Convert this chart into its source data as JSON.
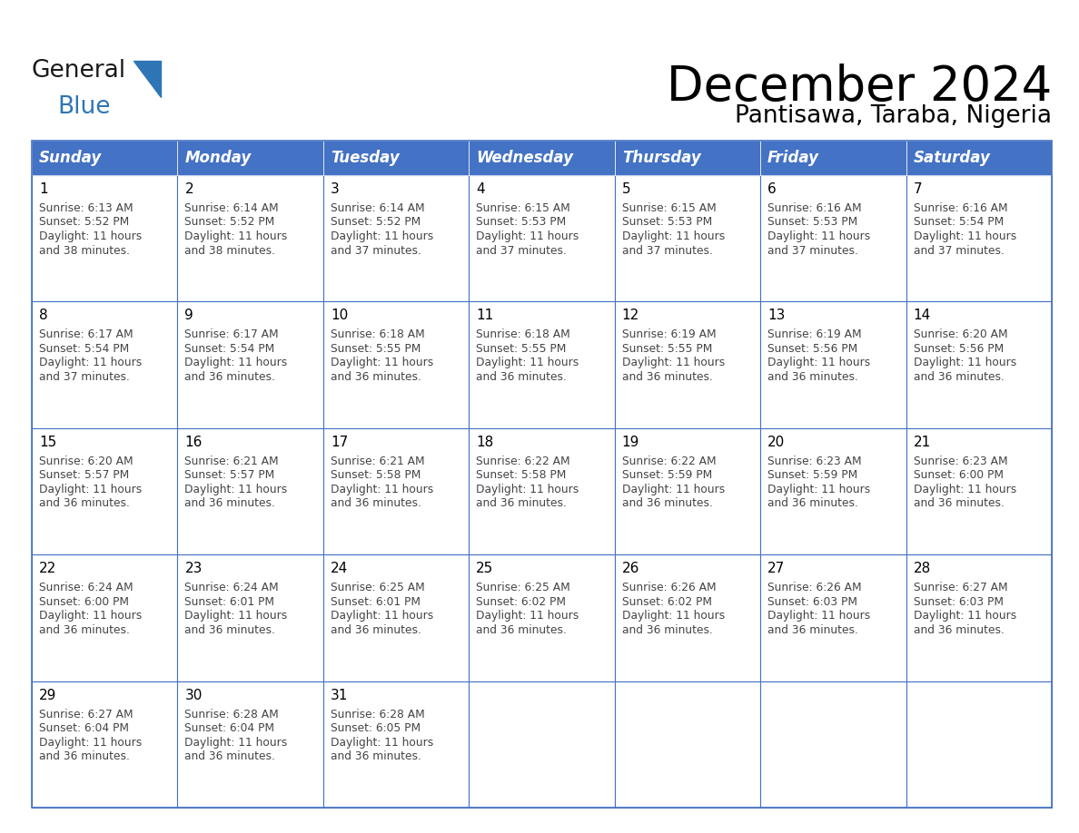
{
  "title": "December 2024",
  "subtitle": "Pantisawa, Taraba, Nigeria",
  "days_of_week": [
    "Sunday",
    "Monday",
    "Tuesday",
    "Wednesday",
    "Thursday",
    "Friday",
    "Saturday"
  ],
  "header_bg": "#4472C4",
  "header_text": "#FFFFFF",
  "cell_bg": "#FFFFFF",
  "border_color": "#4472C4",
  "day_num_color": "#000000",
  "cell_text_color": "#444444",
  "title_color": "#000000",
  "subtitle_color": "#000000",
  "logo_general_color": "#1a1a1a",
  "logo_blue_color": "#2E75B6",
  "calendar_data": [
    [
      {
        "day": 1,
        "sunrise": "6:13 AM",
        "sunset": "5:52 PM",
        "daylight": "11 hours and 38 minutes."
      },
      {
        "day": 2,
        "sunrise": "6:14 AM",
        "sunset": "5:52 PM",
        "daylight": "11 hours and 38 minutes."
      },
      {
        "day": 3,
        "sunrise": "6:14 AM",
        "sunset": "5:52 PM",
        "daylight": "11 hours and 37 minutes."
      },
      {
        "day": 4,
        "sunrise": "6:15 AM",
        "sunset": "5:53 PM",
        "daylight": "11 hours and 37 minutes."
      },
      {
        "day": 5,
        "sunrise": "6:15 AM",
        "sunset": "5:53 PM",
        "daylight": "11 hours and 37 minutes."
      },
      {
        "day": 6,
        "sunrise": "6:16 AM",
        "sunset": "5:53 PM",
        "daylight": "11 hours and 37 minutes."
      },
      {
        "day": 7,
        "sunrise": "6:16 AM",
        "sunset": "5:54 PM",
        "daylight": "11 hours and 37 minutes."
      }
    ],
    [
      {
        "day": 8,
        "sunrise": "6:17 AM",
        "sunset": "5:54 PM",
        "daylight": "11 hours and 37 minutes."
      },
      {
        "day": 9,
        "sunrise": "6:17 AM",
        "sunset": "5:54 PM",
        "daylight": "11 hours and 36 minutes."
      },
      {
        "day": 10,
        "sunrise": "6:18 AM",
        "sunset": "5:55 PM",
        "daylight": "11 hours and 36 minutes."
      },
      {
        "day": 11,
        "sunrise": "6:18 AM",
        "sunset": "5:55 PM",
        "daylight": "11 hours and 36 minutes."
      },
      {
        "day": 12,
        "sunrise": "6:19 AM",
        "sunset": "5:55 PM",
        "daylight": "11 hours and 36 minutes."
      },
      {
        "day": 13,
        "sunrise": "6:19 AM",
        "sunset": "5:56 PM",
        "daylight": "11 hours and 36 minutes."
      },
      {
        "day": 14,
        "sunrise": "6:20 AM",
        "sunset": "5:56 PM",
        "daylight": "11 hours and 36 minutes."
      }
    ],
    [
      {
        "day": 15,
        "sunrise": "6:20 AM",
        "sunset": "5:57 PM",
        "daylight": "11 hours and 36 minutes."
      },
      {
        "day": 16,
        "sunrise": "6:21 AM",
        "sunset": "5:57 PM",
        "daylight": "11 hours and 36 minutes."
      },
      {
        "day": 17,
        "sunrise": "6:21 AM",
        "sunset": "5:58 PM",
        "daylight": "11 hours and 36 minutes."
      },
      {
        "day": 18,
        "sunrise": "6:22 AM",
        "sunset": "5:58 PM",
        "daylight": "11 hours and 36 minutes."
      },
      {
        "day": 19,
        "sunrise": "6:22 AM",
        "sunset": "5:59 PM",
        "daylight": "11 hours and 36 minutes."
      },
      {
        "day": 20,
        "sunrise": "6:23 AM",
        "sunset": "5:59 PM",
        "daylight": "11 hours and 36 minutes."
      },
      {
        "day": 21,
        "sunrise": "6:23 AM",
        "sunset": "6:00 PM",
        "daylight": "11 hours and 36 minutes."
      }
    ],
    [
      {
        "day": 22,
        "sunrise": "6:24 AM",
        "sunset": "6:00 PM",
        "daylight": "11 hours and 36 minutes."
      },
      {
        "day": 23,
        "sunrise": "6:24 AM",
        "sunset": "6:01 PM",
        "daylight": "11 hours and 36 minutes."
      },
      {
        "day": 24,
        "sunrise": "6:25 AM",
        "sunset": "6:01 PM",
        "daylight": "11 hours and 36 minutes."
      },
      {
        "day": 25,
        "sunrise": "6:25 AM",
        "sunset": "6:02 PM",
        "daylight": "11 hours and 36 minutes."
      },
      {
        "day": 26,
        "sunrise": "6:26 AM",
        "sunset": "6:02 PM",
        "daylight": "11 hours and 36 minutes."
      },
      {
        "day": 27,
        "sunrise": "6:26 AM",
        "sunset": "6:03 PM",
        "daylight": "11 hours and 36 minutes."
      },
      {
        "day": 28,
        "sunrise": "6:27 AM",
        "sunset": "6:03 PM",
        "daylight": "11 hours and 36 minutes."
      }
    ],
    [
      {
        "day": 29,
        "sunrise": "6:27 AM",
        "sunset": "6:04 PM",
        "daylight": "11 hours and 36 minutes."
      },
      {
        "day": 30,
        "sunrise": "6:28 AM",
        "sunset": "6:04 PM",
        "daylight": "11 hours and 36 minutes."
      },
      {
        "day": 31,
        "sunrise": "6:28 AM",
        "sunset": "6:05 PM",
        "daylight": "11 hours and 36 minutes."
      },
      null,
      null,
      null,
      null
    ]
  ]
}
